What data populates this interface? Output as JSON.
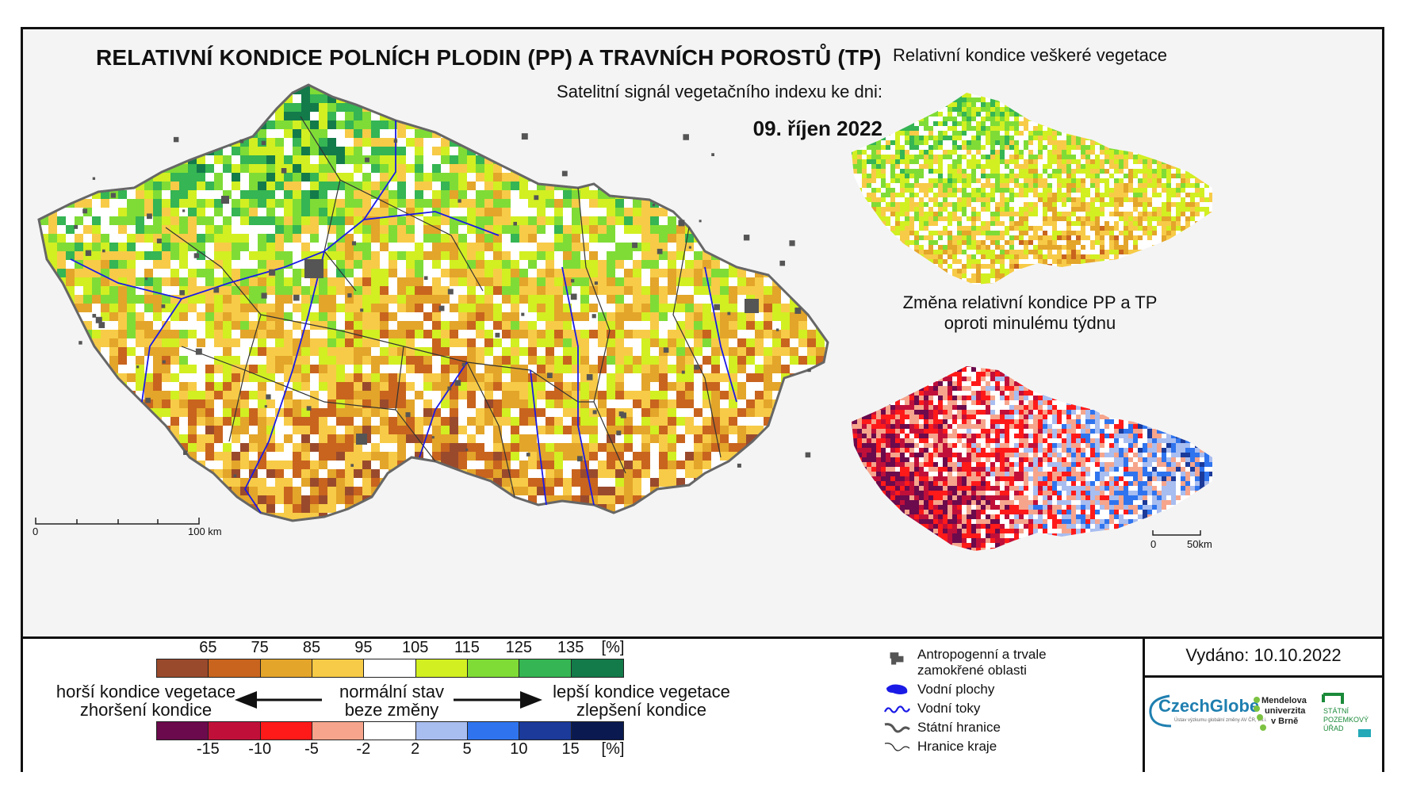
{
  "title": "RELATIVNÍ KONDICE POLNÍCH PLODIN (PP) A TRAVNÍCH POROSTŮ (TP)",
  "subtitle": "Satelitní signál vegetačního indexu ke dni:",
  "date": "09. říjen 2022",
  "side_map_1_title": "Relativní kondice veškeré vegetace",
  "side_map_2_title_line1": "Změna relativní kondice PP a TP",
  "side_map_2_title_line2": "oproti minulému týdnu",
  "main_scale": {
    "start": "0",
    "end": "100 km"
  },
  "small_scale": {
    "start": "0",
    "end": "50km"
  },
  "condition_legend": {
    "ticks": [
      "65",
      "75",
      "85",
      "95",
      "105",
      "115",
      "125",
      "135"
    ],
    "unit": "[%]",
    "colors": [
      "#9a4a2c",
      "#c8641e",
      "#e3a52a",
      "#f7cb47",
      "#ffffff",
      "#d2ef22",
      "#7fdc36",
      "#35b553",
      "#137a4a"
    ]
  },
  "change_legend": {
    "ticks": [
      "-15",
      "-10",
      "-5",
      "-2",
      "2",
      "5",
      "10",
      "15"
    ],
    "unit": "[%]",
    "colors": [
      "#6b0a4c",
      "#c0103a",
      "#ff1a1a",
      "#f6a58c",
      "#ffffff",
      "#a8bdf0",
      "#2f74ee",
      "#1b3a9a",
      "#0a1950"
    ]
  },
  "left_label_1": "horší kondice vegetace",
  "left_label_2": "zhoršení kondice",
  "center_label_1": "normální stav",
  "center_label_2": "beze změny",
  "right_label_1": "lepší kondice vegetace",
  "right_label_2": "zlepšení kondice",
  "map_key": {
    "anthropogenic_line1": "Antropogenní a trvale",
    "anthropogenic_line2": "zamokřené oblasti",
    "water_areas": "Vodní plochy",
    "water_streams": "Vodní toky",
    "state_border": "Státní hranice",
    "region_border": "Hranice kraje"
  },
  "issued": "Vydáno: 10.10.2022",
  "logos": {
    "czechglobe": "CzechGlobe",
    "czechglobe_sub": "Ústav výzkumu globální změny AV ČR, v.v.i.",
    "mendelu_line1": "Mendelova",
    "mendelu_line2": "univerzita",
    "mendelu_line3": "v Brně",
    "spu_line1": "STÁTNÍ",
    "spu_line2": "POZEMKOVÝ",
    "spu_line3": "ÚŘAD"
  },
  "map_palettes": {
    "main": [
      "#137a4a",
      "#35b553",
      "#7fdc36",
      "#d2ef22",
      "#ffffff",
      "#f7cb47",
      "#e3a52a",
      "#c8641e",
      "#9a4a2c"
    ],
    "side1": [
      "#35b553",
      "#7fdc36",
      "#d2ef22",
      "#ffffff",
      "#f7cb47",
      "#e3a52a",
      "#c8641e"
    ],
    "side2": [
      "#6b0a4c",
      "#c0103a",
      "#ff1a1a",
      "#f6a58c",
      "#ffffff",
      "#a8bdf0",
      "#2f74ee",
      "#1b3a9a"
    ]
  }
}
